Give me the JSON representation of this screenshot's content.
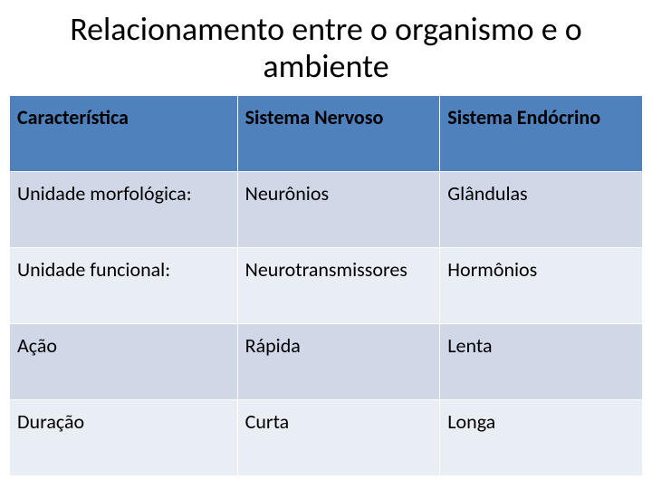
{
  "title": "Relacionamento entre o organismo e o ambiente",
  "table": {
    "header_bg": "#4f81bd",
    "row_odd_bg": "#d0d8e8",
    "row_even_bg": "#e9edf4",
    "border_color": "#ffffff",
    "text_color": "#000000",
    "fontsize": 22,
    "columns": [
      "Característica",
      "Sistema Nervoso",
      "Sistema Endócrino"
    ],
    "rows": [
      [
        "Unidade   morfológica:",
        "Neurônios",
        "Glândulas"
      ],
      [
        "Unidade funcional:",
        "Neurotransmissores",
        "Hormônios"
      ],
      [
        "Ação",
        "Rápida",
        "Lenta"
      ],
      [
        "Duração",
        "Curta",
        "Longa"
      ]
    ],
    "col_widths_pct": [
      36,
      32,
      32
    ]
  }
}
